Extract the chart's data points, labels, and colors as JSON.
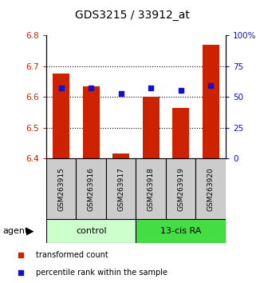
{
  "title": "GDS3215 / 33912_at",
  "samples": [
    "GSM263915",
    "GSM263916",
    "GSM263917",
    "GSM263918",
    "GSM263919",
    "GSM263920"
  ],
  "groups": [
    "control",
    "control",
    "control",
    "13-cis RA",
    "13-cis RA",
    "13-cis RA"
  ],
  "red_values": [
    6.675,
    6.635,
    6.415,
    6.6,
    6.565,
    6.77
  ],
  "blue_values": [
    6.63,
    6.628,
    6.61,
    6.628,
    6.622,
    6.638
  ],
  "ylim_left": [
    6.4,
    6.8
  ],
  "ylim_right": [
    0,
    100
  ],
  "yticks_left": [
    6.4,
    6.5,
    6.6,
    6.7,
    6.8
  ],
  "yticks_right": [
    0,
    25,
    50,
    75,
    100
  ],
  "ytick_labels_right": [
    "0",
    "25",
    "50",
    "75",
    "100%"
  ],
  "ytick_labels_left": [
    "6.4",
    "6.5",
    "6.6",
    "6.7",
    "6.8"
  ],
  "bar_color": "#cc2200",
  "dot_color": "#1111cc",
  "control_color": "#ccffcc",
  "ra_color": "#44dd44",
  "sample_bg": "#cccccc",
  "group_label": "agent",
  "legend_items": [
    "transformed count",
    "percentile rank within the sample"
  ],
  "bar_width": 0.55,
  "grid_lines": [
    6.5,
    6.6,
    6.7
  ]
}
